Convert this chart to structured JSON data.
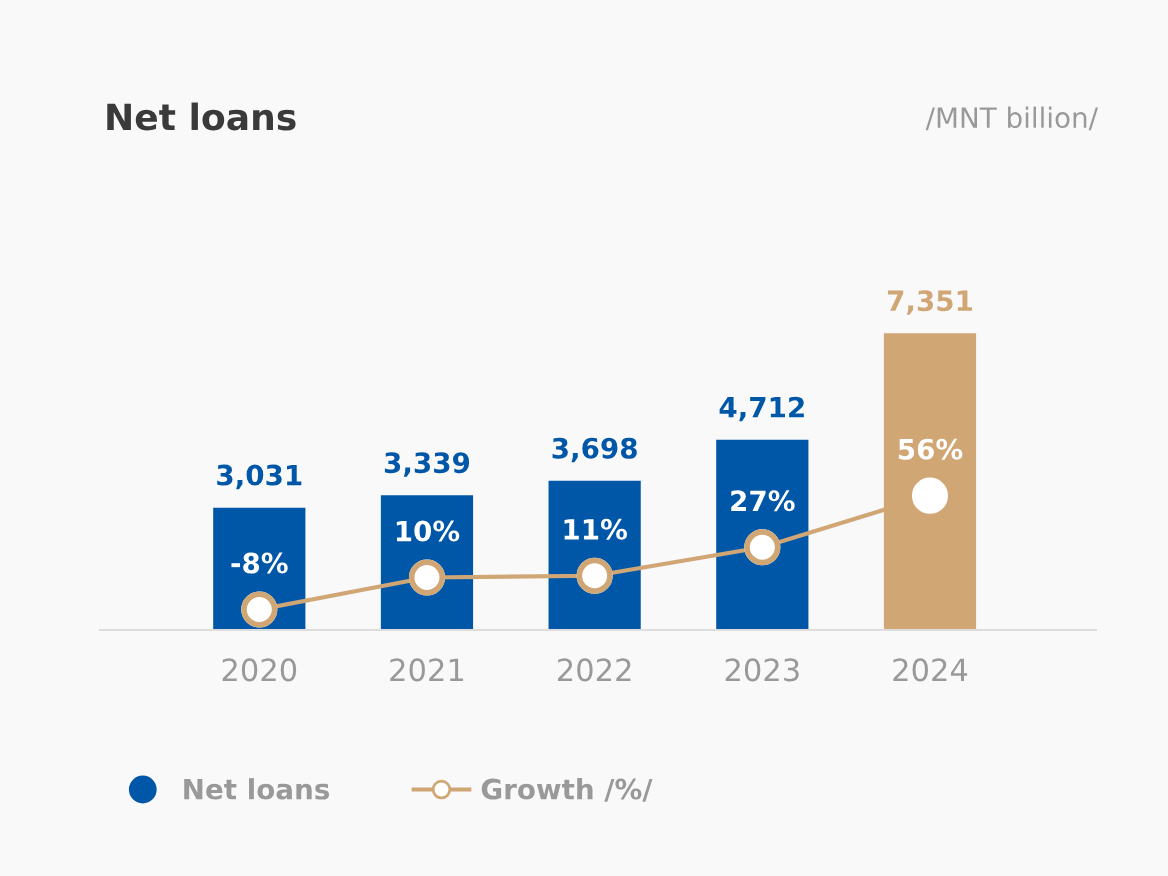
{
  "chart_data": {
    "type": "bar",
    "title": "Net loans",
    "subtitle": "/MNT billion/",
    "categories": [
      "2020",
      "2021",
      "2022",
      "2023",
      "2024"
    ],
    "tick_labels": "x",
    "legend": "bottom left",
    "series": [
      {
        "name": "Net loans",
        "colors": [
          "#0057a8",
          "#0057a8",
          "#0057a8",
          "#0057a8",
          "#d0a675"
        ],
        "color": "#0057a8",
        "values": [
          3031,
          3339,
          3698,
          4712,
          7351
        ],
        "value_labels": [
          "3,031",
          "3,339",
          "3,698",
          "4,712",
          "7,351"
        ]
      },
      {
        "name": "Growth /%/",
        "type": "line",
        "axis": "y2",
        "color": "#d0a675",
        "marker": "circle",
        "values": [
          -8,
          10,
          11,
          27,
          56
        ],
        "value_labels": [
          "-8%",
          "10%",
          "11%",
          "27%",
          "56%"
        ]
      }
    ]
  }
}
